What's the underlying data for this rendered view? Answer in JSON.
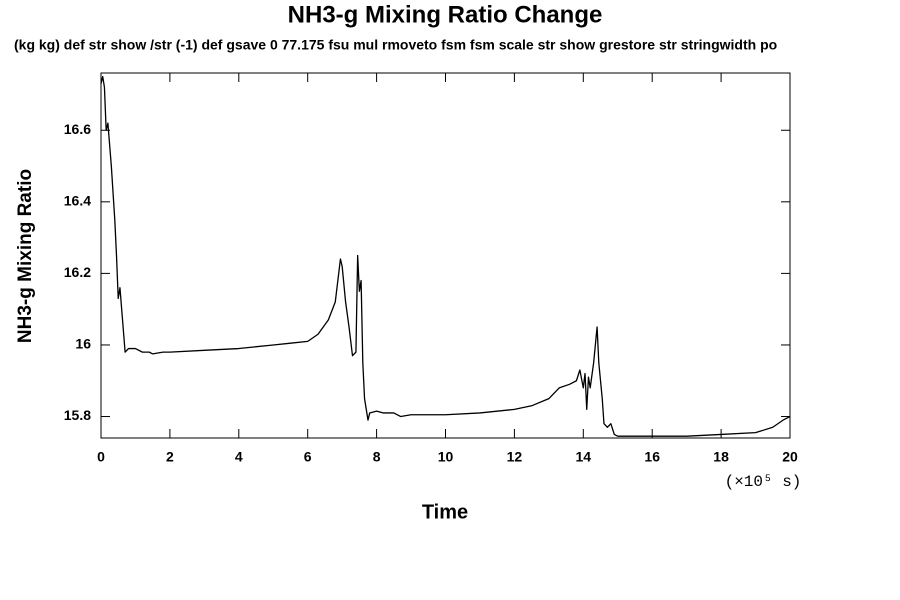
{
  "chart_data": {
    "type": "line",
    "title": "NH3-g Mixing Ratio Change",
    "subtitle": "(kg kg) def str show /str (-1) def gsave 0 77.175 fsu mul rmoveto fsm fsm scale str show grestore str stringwidth po",
    "ylabel": "NH3-g Mixing Ratio",
    "xlabel": "Time",
    "xunit": "(×10⁵ s)",
    "color": "#000000",
    "x": [
      0,
      0.05,
      0.1,
      0.15,
      0.2,
      0.25,
      0.3,
      0.4,
      0.45,
      0.5,
      0.55,
      0.6,
      0.7,
      0.8,
      1.0,
      1.2,
      1.4,
      1.5,
      1.8,
      2,
      3,
      4,
      5,
      5.5,
      6,
      6.3,
      6.6,
      6.8,
      6.95,
      7.0,
      7.1,
      7.2,
      7.3,
      7.4,
      7.45,
      7.5,
      7.55,
      7.6,
      7.65,
      7.75,
      7.8,
      8.0,
      8.2,
      8.5,
      8.7,
      9,
      10,
      11,
      12,
      12.5,
      13,
      13.3,
      13.6,
      13.8,
      13.9,
      14.0,
      14.05,
      14.1,
      14.15,
      14.2,
      14.3,
      14.4,
      14.45,
      14.55,
      14.6,
      14.7,
      14.8,
      14.9,
      15,
      15.5,
      16,
      17,
      18,
      19,
      19.5,
      19.8,
      20
    ],
    "values": [
      16.73,
      16.75,
      16.72,
      16.6,
      16.62,
      16.56,
      16.5,
      16.35,
      16.25,
      16.13,
      16.16,
      16.1,
      15.98,
      15.99,
      15.99,
      15.98,
      15.98,
      15.975,
      15.98,
      15.98,
      15.985,
      15.99,
      16.0,
      16.005,
      16.01,
      16.03,
      16.07,
      16.12,
      16.24,
      16.22,
      16.12,
      16.05,
      15.97,
      15.98,
      16.25,
      16.15,
      16.18,
      15.95,
      15.85,
      15.79,
      15.81,
      15.815,
      15.81,
      15.81,
      15.8,
      15.805,
      15.805,
      15.81,
      15.82,
      15.83,
      15.85,
      15.88,
      15.89,
      15.9,
      15.93,
      15.88,
      15.92,
      15.82,
      15.91,
      15.88,
      15.95,
      16.05,
      15.95,
      15.85,
      15.78,
      15.77,
      15.78,
      15.75,
      15.745,
      15.745,
      15.745,
      15.745,
      15.75,
      15.755,
      15.77,
      15.79,
      15.8
    ],
    "xlim": [
      0,
      20
    ],
    "xticks": [
      0,
      2,
      4,
      6,
      8,
      10,
      12,
      14,
      16,
      18,
      20
    ],
    "ylim": [
      15.74,
      16.76
    ],
    "yticks": [
      15.8,
      16.0,
      16.2,
      16.4,
      16.6
    ]
  }
}
